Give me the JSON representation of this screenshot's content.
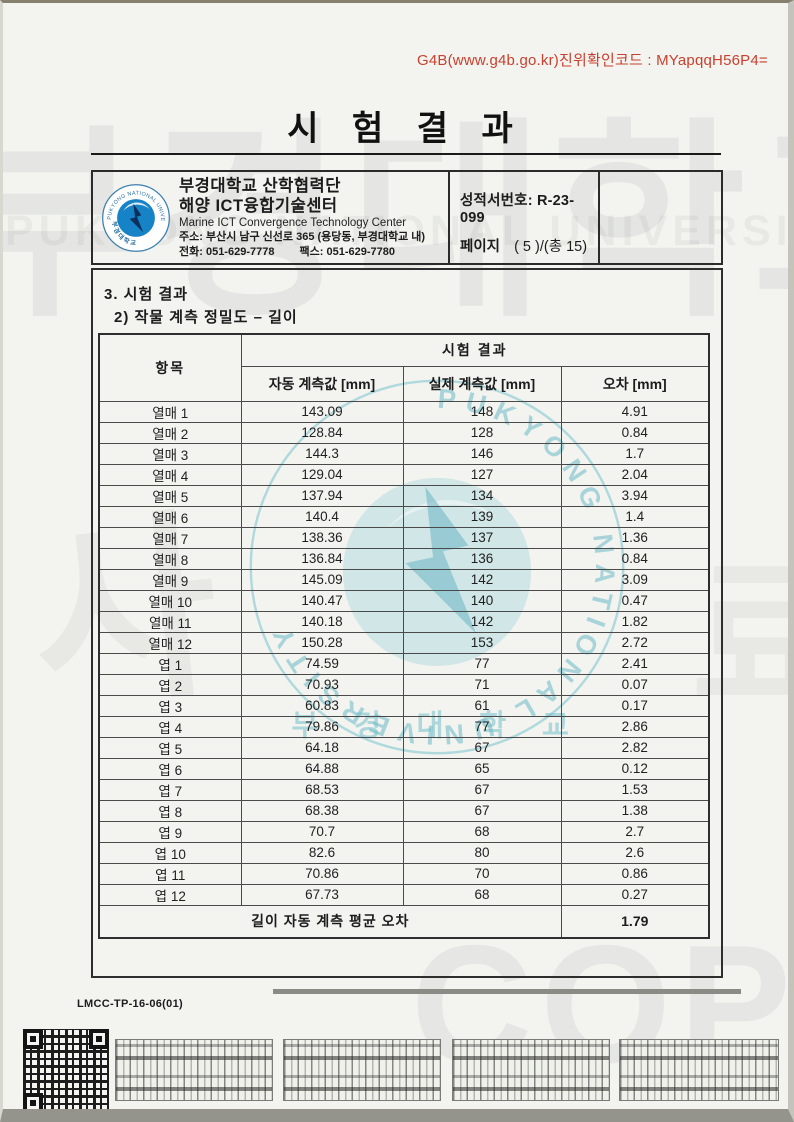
{
  "document": {
    "auth_code": "G4B(www.g4b.go.kr)진위확인코드 : MYapqqH56P4=",
    "title": "시 험 결 과",
    "doc_code": "LMCC-TP-16-06(01)"
  },
  "header": {
    "org_name_kr": "부경대학교 산학협력단",
    "center_name_kr": "해양 ICT융합기술센터",
    "center_name_en": "Marine ICT Convergence Technology Center",
    "address": "주소: 부산시 남구 신선로 365 (용당동, 부경대학교 내)",
    "phone": "전화: 051-629-7778",
    "fax": "팩스: 051-629-7780",
    "report_no_label": "성적서번호:",
    "report_no_value": "R-23-099",
    "page_label": "페이지",
    "page_value": "( 5 )/(총 15)"
  },
  "sections": {
    "heading1": "3. 시험 결과",
    "heading2": "2) 작물 계측 정밀도 – 길이"
  },
  "table": {
    "item_header": "항목",
    "group_header": "시험 결과",
    "columns": [
      "자동 계측값 [mm]",
      "실제 계측값 [mm]",
      "오차 [mm]"
    ],
    "rows": [
      {
        "item": "열매 1",
        "auto": "143.09",
        "actual": "148",
        "error": "4.91"
      },
      {
        "item": "열매 2",
        "auto": "128.84",
        "actual": "128",
        "error": "0.84"
      },
      {
        "item": "열매 3",
        "auto": "144.3",
        "actual": "146",
        "error": "1.7"
      },
      {
        "item": "열매 4",
        "auto": "129.04",
        "actual": "127",
        "error": "2.04"
      },
      {
        "item": "열매 5",
        "auto": "137.94",
        "actual": "134",
        "error": "3.94"
      },
      {
        "item": "열매 6",
        "auto": "140.4",
        "actual": "139",
        "error": "1.4"
      },
      {
        "item": "열매 7",
        "auto": "138.36",
        "actual": "137",
        "error": "1.36"
      },
      {
        "item": "열매 8",
        "auto": "136.84",
        "actual": "136",
        "error": "0.84"
      },
      {
        "item": "열매 9",
        "auto": "145.09",
        "actual": "142",
        "error": "3.09"
      },
      {
        "item": "열매 10",
        "auto": "140.47",
        "actual": "140",
        "error": "0.47"
      },
      {
        "item": "열매 11",
        "auto": "140.18",
        "actual": "142",
        "error": "1.82"
      },
      {
        "item": "열매 12",
        "auto": "150.28",
        "actual": "153",
        "error": "2.72"
      },
      {
        "item": "엽 1",
        "auto": "74.59",
        "actual": "77",
        "error": "2.41"
      },
      {
        "item": "엽 2",
        "auto": "70.93",
        "actual": "71",
        "error": "0.07"
      },
      {
        "item": "엽 3",
        "auto": "60.83",
        "actual": "61",
        "error": "0.17"
      },
      {
        "item": "엽 4",
        "auto": "79.86",
        "actual": "77",
        "error": "2.86"
      },
      {
        "item": "엽 5",
        "auto": "64.18",
        "actual": "67",
        "error": "2.82"
      },
      {
        "item": "엽 6",
        "auto": "64.88",
        "actual": "65",
        "error": "0.12"
      },
      {
        "item": "엽 7",
        "auto": "68.53",
        "actual": "67",
        "error": "1.53"
      },
      {
        "item": "엽 8",
        "auto": "68.38",
        "actual": "67",
        "error": "1.38"
      },
      {
        "item": "엽 9",
        "auto": "70.7",
        "actual": "68",
        "error": "2.7"
      },
      {
        "item": "엽 10",
        "auto": "82.6",
        "actual": "80",
        "error": "2.6"
      },
      {
        "item": "엽 11",
        "auto": "70.86",
        "actual": "70",
        "error": "0.86"
      },
      {
        "item": "엽 12",
        "auto": "67.73",
        "actual": "68",
        "error": "0.27"
      }
    ],
    "avg_label": "길이 자동 계측 평균 오차",
    "avg_value": "1.79"
  },
  "watermarks": {
    "korean": "부경대학교",
    "english": "PUKYONG NATIONAL UNIVERSITY",
    "copy": "COPY",
    "seal_text": "PUKYONG NATIONAL UNIVERSITY",
    "seal_korean": "부 경 대 학 교",
    "glyph_left": "사",
    "glyph_right": "료"
  },
  "logo": {
    "ring_text": "PUKYONG NATIONAL UNIVERSITY",
    "ring_korean": "부경대학교"
  },
  "colors": {
    "auth_red": "#c8402e",
    "logo_blue": "#1583c5",
    "logo_navy": "#0d2f5e",
    "seal_blue": "#7fc4cf"
  }
}
